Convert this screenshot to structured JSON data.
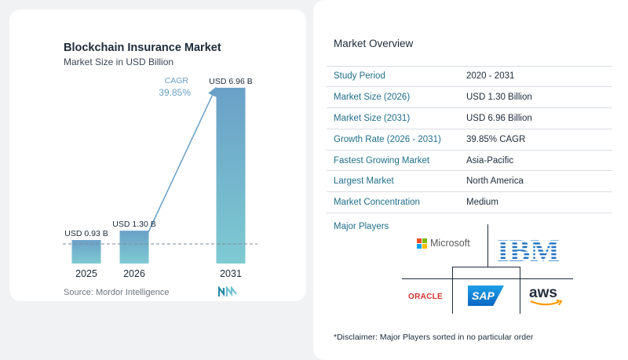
{
  "chart_data": {
    "type": "bar",
    "title": "Blockchain Insurance Market",
    "subtitle": "Market Size in USD Billion",
    "categories": [
      "2025",
      "2026",
      "2031"
    ],
    "values": [
      0.93,
      1.3,
      6.96
    ],
    "data_labels": [
      "USD 0.93 B",
      "USD 1.30 B",
      "USD 6.96 B"
    ],
    "annotation": {
      "label": "CAGR",
      "value": "39.85%"
    },
    "colors": {
      "bar_top": "#6aa0c7",
      "bar_bottom": "#7ecad2",
      "arrow": "#6aa0c7",
      "baseline": "#7c8b96"
    },
    "grid": false,
    "legend": "none"
  },
  "source": "Source:  Mordor Intelligence",
  "overview": {
    "title": "Market Overview",
    "rows": [
      {
        "label": "Study Period",
        "value": "2020 - 2031"
      },
      {
        "label": "Market Size (2026)",
        "value": "USD 1.30 Billion"
      },
      {
        "label": "Market Size (2031)",
        "value": "USD 6.96 Billion"
      },
      {
        "label": "Growth Rate (2026 - 2031)",
        "value": "39.85% CAGR"
      },
      {
        "label": "Fastest Growing Market",
        "value": "Asia-Pacific"
      },
      {
        "label": "Largest Market",
        "value": "North America"
      },
      {
        "label": "Market Concentration",
        "value": "Medium"
      }
    ],
    "label_color": "#1f6f8b"
  },
  "major_players": {
    "title": "Major Players",
    "logos": {
      "microsoft": "Microsoft",
      "ibm": "IBM",
      "oracle": "ORACLE",
      "sap": "SAP",
      "aws": "aws"
    }
  },
  "disclaimer": "*Disclaimer: Major Players sorted in no particular order"
}
